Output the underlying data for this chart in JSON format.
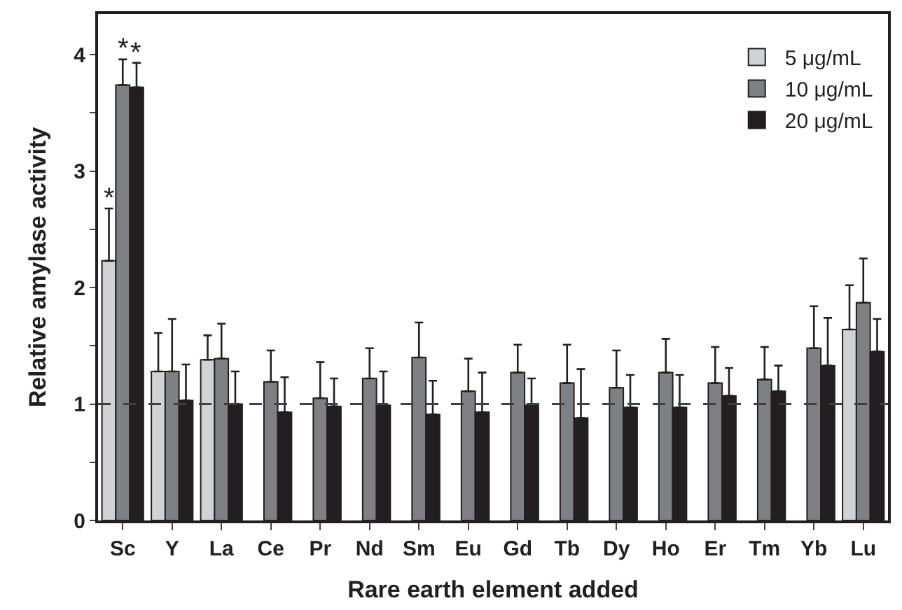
{
  "chart_data": {
    "type": "bar",
    "xlabel": "Rare earth element added",
    "ylabel": "Relative amylase activity",
    "categories": [
      "Sc",
      "Y",
      "La",
      "Ce",
      "Pr",
      "Nd",
      "Sm",
      "Eu",
      "Gd",
      "Tb",
      "Dy",
      "Ho",
      "Er",
      "Tm",
      "Yb",
      "Lu"
    ],
    "series": [
      {
        "name": "5 μg/mL",
        "color": "#d0d2d3",
        "values": [
          2.23,
          1.28,
          1.38,
          null,
          null,
          null,
          null,
          null,
          null,
          null,
          null,
          null,
          null,
          null,
          null,
          1.64
        ],
        "errors": [
          [
            2.23,
            2.68
          ],
          [
            1.28,
            1.61
          ],
          [
            1.38,
            1.59
          ],
          null,
          null,
          null,
          null,
          null,
          null,
          null,
          null,
          null,
          null,
          null,
          null,
          [
            1.64,
            2.02
          ]
        ]
      },
      {
        "name": "10 μg/mL",
        "color": "#7f8083",
        "values": [
          3.74,
          1.28,
          1.39,
          1.19,
          1.05,
          1.22,
          1.4,
          1.11,
          1.27,
          1.18,
          1.14,
          1.27,
          1.18,
          1.21,
          1.48,
          1.87
        ],
        "errors": [
          [
            3.74,
            3.96
          ],
          [
            1.28,
            1.73
          ],
          [
            1.39,
            1.69
          ],
          [
            1.19,
            1.46
          ],
          [
            1.05,
            1.36
          ],
          [
            1.22,
            1.48
          ],
          [
            1.4,
            1.7
          ],
          [
            1.11,
            1.39
          ],
          [
            1.27,
            1.51
          ],
          [
            1.18,
            1.51
          ],
          [
            1.14,
            1.46
          ],
          [
            1.27,
            1.56
          ],
          [
            1.18,
            1.49
          ],
          [
            1.21,
            1.49
          ],
          [
            1.48,
            1.84
          ],
          [
            1.87,
            2.25
          ]
        ]
      },
      {
        "name": "20 μg/mL",
        "color": "#231f20",
        "values": [
          3.72,
          1.03,
          1.0,
          0.93,
          0.98,
          0.99,
          0.91,
          0.93,
          0.99,
          0.88,
          0.97,
          0.97,
          1.07,
          1.11,
          1.33,
          1.45
        ],
        "errors": [
          [
            3.72,
            3.93
          ],
          [
            1.03,
            1.34
          ],
          [
            1.0,
            1.28
          ],
          [
            0.93,
            1.23
          ],
          [
            0.98,
            1.22
          ],
          [
            0.99,
            1.28
          ],
          [
            0.91,
            1.2
          ],
          [
            0.93,
            1.27
          ],
          [
            0.99,
            1.22
          ],
          [
            0.88,
            1.3
          ],
          [
            0.97,
            1.25
          ],
          [
            0.97,
            1.25
          ],
          [
            1.07,
            1.31
          ],
          [
            1.11,
            1.33
          ],
          [
            1.33,
            1.74
          ],
          [
            1.45,
            1.73
          ]
        ]
      }
    ],
    "ylim": [
      0,
      4.35
    ],
    "yticks": [
      0,
      {
        "value": 0.5,
        "label": null
      },
      1,
      {
        "value": 1.5,
        "label": null
      },
      2,
      {
        "value": 2.5,
        "label": null
      },
      3,
      {
        "value": 3.5,
        "label": null
      },
      4
    ],
    "ref_lines": [
      {
        "axis": "y",
        "value": 1,
        "color": "#404040",
        "line_style": "dashed"
      }
    ],
    "annotations": [
      {
        "text": "*",
        "x": "Sc",
        "y": 2.68
      },
      {
        "text": "*",
        "x": "Sc",
        "y": 3.96
      },
      {
        "text": "*",
        "x": "Sc",
        "y": 3.93
      }
    ],
    "legend": "top right"
  }
}
